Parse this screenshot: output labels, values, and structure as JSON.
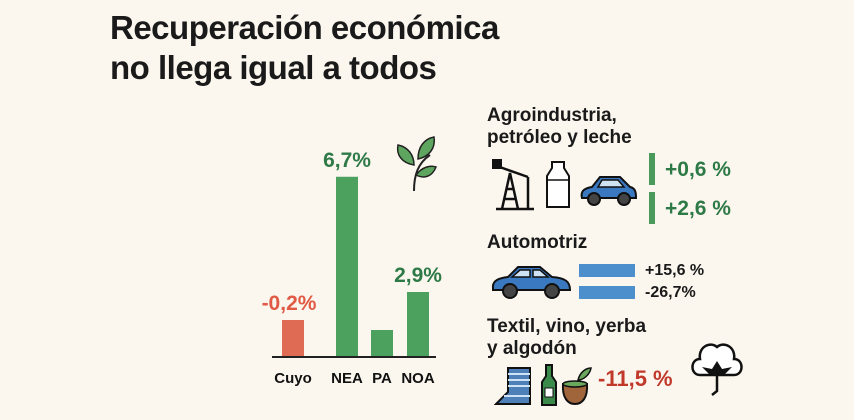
{
  "title": {
    "line1": "Recuperación económica",
    "line2": "no llega igual a todos"
  },
  "chart_data": {
    "type": "bar",
    "categories": [
      "Cuyo",
      "NEA",
      "PA",
      "NOA"
    ],
    "values": [
      -0.2,
      6.7,
      1.0,
      2.9
    ],
    "labels": [
      "-0,2%",
      "6,7%",
      "",
      "2,9%"
    ],
    "colors": [
      "#e06b55",
      "#4da15e",
      "#4da15e",
      "#4da15e"
    ],
    "label_colors": [
      "#e05a45",
      "#2e7a47",
      "#2e7a47",
      "#2e7a47"
    ],
    "title": "",
    "xlabel": "",
    "ylabel": "",
    "grid": false
  },
  "sectors": {
    "agro": {
      "title_line1": "Agroindustria,",
      "title_line2": "petróleo y leche",
      "values": [
        "+0,6 %",
        "+2,6 %"
      ],
      "icons": [
        "oil-pump-icon",
        "milk-bottle-icon",
        "car-icon"
      ]
    },
    "auto": {
      "title": "Automotriz",
      "values": [
        "+15,6 %",
        "-26,7%"
      ],
      "icons": [
        "car-icon"
      ]
    },
    "textil": {
      "title_line1": "Textil, vino, yerba",
      "title_line2": "y algodón",
      "value": "-11,5 %",
      "icons": [
        "fabric-icon",
        "wine-bottle-icon",
        "mate-icon",
        "cotton-icon"
      ]
    }
  },
  "decor_icons": [
    "leaf-icon"
  ]
}
